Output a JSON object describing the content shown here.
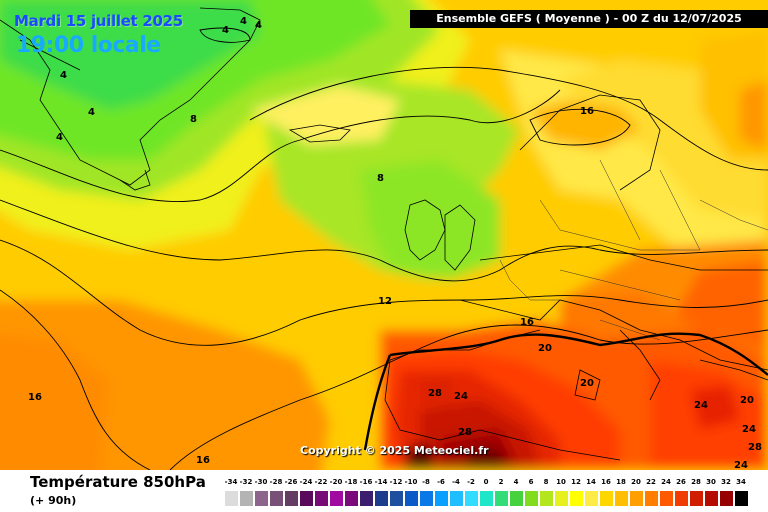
{
  "header": {
    "date_line": "Mardi 15 juillet 2025",
    "time_line": "19:00 locale",
    "model_banner": "Ensemble GEFS  ( Moyenne )  -  00 Z du 12/07/2025"
  },
  "map": {
    "copyright": "Copyright © 2025 Meteociel.fr",
    "isotherm_labels": {
      "l1": "4",
      "l2": "4",
      "l3": "4",
      "l4": "4",
      "l5": "4",
      "l6": "4",
      "l7": "8",
      "l8": "8",
      "l9": "12",
      "l10": "16",
      "l11": "16",
      "l12": "16",
      "l13": "16",
      "l14": "20",
      "l15": "20",
      "l16": "24",
      "l17": "28",
      "l18": "28",
      "l19": "24",
      "l20": "20",
      "l21": "24",
      "l22": "28",
      "l23": "24"
    }
  },
  "footer": {
    "variable_title": "Température 850hPa",
    "forecast_range": "(+ 90h)",
    "legend": {
      "values": [
        "-34",
        "-32",
        "-30",
        "-28",
        "-26",
        "-24",
        "-22",
        "-20",
        "-18",
        "-16",
        "-14",
        "-12",
        "-10",
        "-8",
        "-6",
        "-4",
        "-2",
        "0",
        "2",
        "4",
        "6",
        "8",
        "10",
        "12",
        "14",
        "16",
        "18",
        "20",
        "22",
        "24",
        "26",
        "28",
        "30",
        "32",
        "34"
      ],
      "colors": [
        "#dcdcdc",
        "#b4b4b4",
        "#8c648c",
        "#785078",
        "#643c64",
        "#5a0a5a",
        "#780a78",
        "#a00aa0",
        "#7a0a7a",
        "#3c1e6e",
        "#1e3c8c",
        "#1e50a0",
        "#0a5ac8",
        "#0a78e6",
        "#0aa0ff",
        "#1ebeff",
        "#32dcff",
        "#1ee6c8",
        "#32dc78",
        "#46d23c",
        "#82dc1e",
        "#b4e61e",
        "#e6f01e",
        "#ffff00",
        "#ffeb46",
        "#ffd700",
        "#ffbe00",
        "#ffa000",
        "#ff7d00",
        "#ff5a00",
        "#f03c00",
        "#d21e00",
        "#b40a00",
        "#960000",
        "#000000"
      ]
    }
  }
}
